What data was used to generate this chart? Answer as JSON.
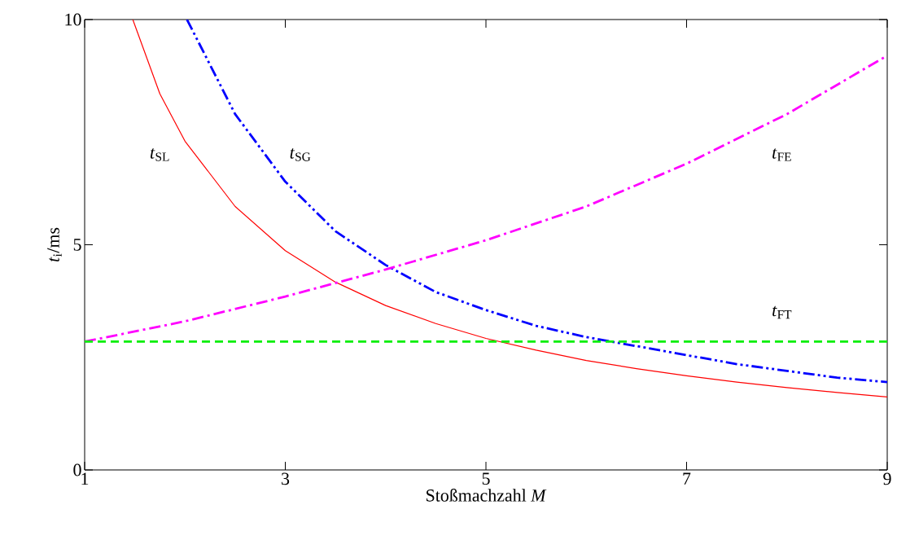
{
  "chart_data": {
    "type": "line",
    "xlabel": "Stoßmachzahl *M*",
    "ylabel": "*t*$_{i}$/ms",
    "xlim": [
      1,
      9
    ],
    "ylim": [
      0,
      10
    ],
    "xticks": [
      1,
      3,
      5,
      7,
      9
    ],
    "yticks": [
      0,
      5,
      10
    ],
    "grid": false,
    "marker": "none",
    "series": [
      {
        "name": "*t*$_{SL}$",
        "color": "#ff0000",
        "line_style": "solid",
        "x": [
          1.48,
          1.75,
          2,
          2.5,
          3,
          3.5,
          4,
          4.5,
          5,
          5.5,
          6,
          6.5,
          7,
          7.5,
          8,
          8.5,
          9
        ],
        "values": [
          10,
          8.35,
          7.3,
          5.85,
          4.87,
          4.17,
          3.65,
          3.25,
          2.92,
          2.66,
          2.43,
          2.25,
          2.09,
          1.95,
          1.83,
          1.72,
          1.62
        ]
      },
      {
        "name": "*t*$_{SG}$",
        "color": "#0000ff",
        "line_style": "dashdotdot",
        "x": [
          2.02,
          2.5,
          3,
          3.5,
          4,
          4.5,
          5,
          5.5,
          6,
          6.5,
          7,
          7.5,
          8,
          8.5,
          9
        ],
        "values": [
          10,
          7.9,
          6.4,
          5.3,
          4.55,
          3.95,
          3.55,
          3.2,
          2.95,
          2.75,
          2.55,
          2.35,
          2.2,
          2.05,
          1.95
        ]
      },
      {
        "name": "*t*$_{FE}$",
        "color": "#ff00ff",
        "line_style": "dashdot",
        "x": [
          1,
          2,
          3,
          4,
          5,
          6,
          7,
          8,
          9
        ],
        "values": [
          2.85,
          3.3,
          3.85,
          4.45,
          5.1,
          5.85,
          6.8,
          7.9,
          9.2
        ]
      },
      {
        "name": "*t*$_{FT}$",
        "color": "#00ee00",
        "line_style": "dashed",
        "x": [
          1,
          9
        ],
        "values": [
          2.85,
          2.85
        ]
      }
    ]
  }
}
